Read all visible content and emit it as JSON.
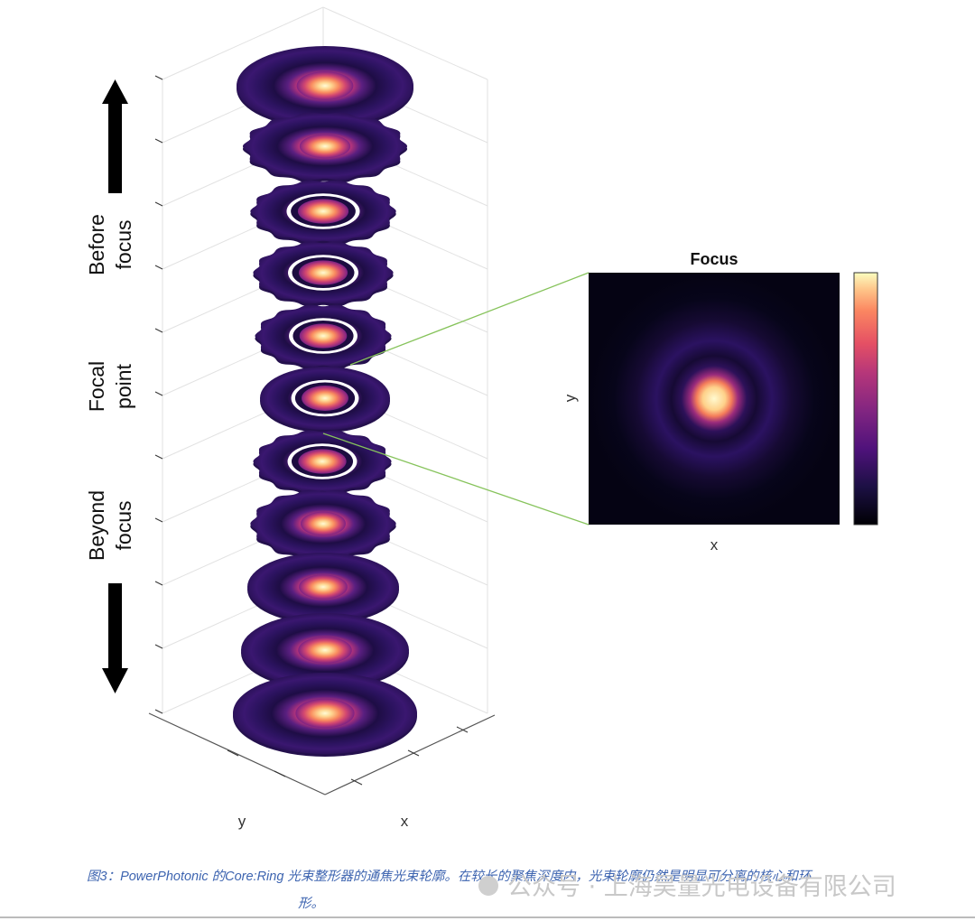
{
  "figure": {
    "labels": {
      "before_line1": "Before",
      "before_line2": "focus",
      "focal_line1": "Focal",
      "focal_line2": "point",
      "beyond_line1": "Beyond",
      "beyond_line2": "focus",
      "axis_y": "y",
      "axis_x": "x"
    },
    "inset": {
      "title": "Focus",
      "xlabel": "x",
      "ylabel": "y"
    },
    "colormap": "magma",
    "colors": {
      "grid": "#e2e2e2",
      "connector": "#86c35b",
      "arrow": "#000000"
    },
    "slices": [
      {
        "ring": false,
        "scalloped": false,
        "core_intensity": 0.95
      },
      {
        "ring": false,
        "scalloped": true,
        "core_intensity": 0.9
      },
      {
        "ring": true,
        "scalloped": true,
        "core_intensity": 0.95
      },
      {
        "ring": true,
        "scalloped": true,
        "core_intensity": 1.0
      },
      {
        "ring": true,
        "scalloped": true,
        "core_intensity": 1.0
      },
      {
        "ring": true,
        "scalloped": false,
        "core_intensity": 1.0
      },
      {
        "ring": true,
        "scalloped": true,
        "core_intensity": 1.0
      },
      {
        "ring": false,
        "scalloped": true,
        "core_intensity": 0.95
      },
      {
        "ring": false,
        "scalloped": false,
        "core_intensity": 0.95
      },
      {
        "ring": false,
        "scalloped": false,
        "core_intensity": 0.95
      },
      {
        "ring": false,
        "scalloped": false,
        "core_intensity": 0.95
      }
    ]
  },
  "caption": {
    "line1": "图3：PowerPhotonic 的Core:Ring 光束整形器的通焦光束轮廓。在较长的聚焦深度内，光束轮廓仍然是明显可分离的核心和环",
    "line2": "形。"
  },
  "watermark": "公众号 · 上海昊量光电设备有限公司"
}
